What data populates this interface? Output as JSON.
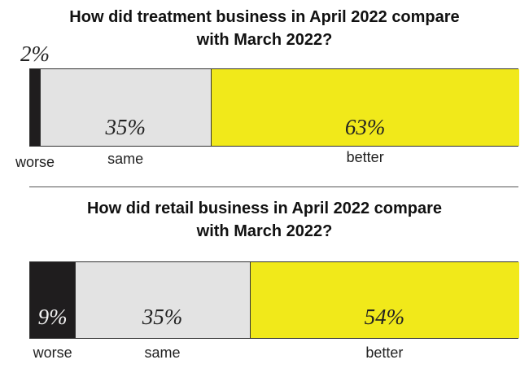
{
  "colors": {
    "worse": "#1f1d1e",
    "same": "#e3e3e3",
    "better": "#f1e91a"
  },
  "chart_data": [
    {
      "type": "bar",
      "orientation": "horizontal-stacked",
      "title_lines": [
        "How did treatment business in April 2022 compare",
        "with March 2022?"
      ],
      "categories": [
        "worse",
        "same",
        "better"
      ],
      "values": [
        2,
        35,
        63
      ],
      "value_labels": [
        "2%",
        "35%",
        "63%"
      ],
      "unit": "%",
      "legend": "none"
    },
    {
      "type": "bar",
      "orientation": "horizontal-stacked",
      "title_lines": [
        "How did retail business in April 2022 compare",
        "with March 2022?"
      ],
      "categories": [
        "worse",
        "same",
        "better"
      ],
      "values": [
        9,
        35,
        54
      ],
      "value_labels": [
        "9%",
        "35%",
        "54%"
      ],
      "unit": "%",
      "legend": "none"
    }
  ]
}
